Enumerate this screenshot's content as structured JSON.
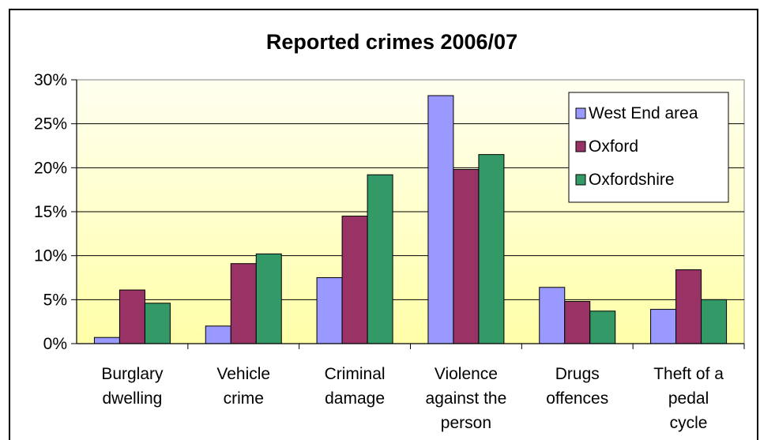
{
  "chart_data": {
    "type": "bar",
    "title": "Reported crimes 2006/07",
    "categories": [
      [
        "Burglary",
        "dwelling"
      ],
      [
        "Vehicle",
        "crime"
      ],
      [
        "Criminal",
        "damage"
      ],
      [
        "Violence",
        "against the",
        "person"
      ],
      [
        "Drugs",
        "offences"
      ],
      [
        "Theft of a",
        "pedal",
        "cycle"
      ]
    ],
    "series": [
      {
        "name": "West End area",
        "color": "#9999ff",
        "values": [
          0.7,
          2.0,
          7.5,
          28.2,
          6.4,
          3.9
        ]
      },
      {
        "name": "Oxford",
        "color": "#993366",
        "values": [
          6.1,
          9.1,
          14.5,
          19.8,
          4.8,
          8.4
        ]
      },
      {
        "name": "Oxfordshire",
        "color": "#339966",
        "values": [
          4.6,
          10.2,
          19.2,
          21.5,
          3.7,
          5.0
        ]
      }
    ],
    "yticks": [
      "0%",
      "5%",
      "10%",
      "15%",
      "20%",
      "25%",
      "30%"
    ],
    "ylim": [
      0,
      30
    ],
    "grid": true,
    "legend_position": "top-right",
    "plot_background": [
      "#fffff0",
      "#ffffa8"
    ]
  }
}
